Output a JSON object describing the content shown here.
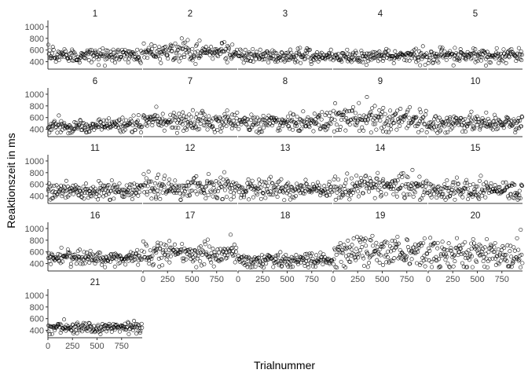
{
  "chart_data": {
    "type": "scatter",
    "layout": "facet-grid",
    "xlabel": "Trialnummer",
    "ylabel": "Reaktionszeit in ms",
    "xlim": [
      0,
      960
    ],
    "ylim": [
      300,
      1080
    ],
    "x_ticks": [
      0,
      250,
      500,
      750
    ],
    "y_ticks": [
      400,
      600,
      800,
      1000
    ],
    "grid": false,
    "legend": "none",
    "point_style": {
      "shape": "open-circle",
      "color": "#000000"
    },
    "trials_per_panel": 960,
    "panels": [
      {
        "label": "1",
        "segments": [
          {
            "x": [
              0,
              960
            ],
            "mean": 510,
            "sd": 65
          }
        ]
      },
      {
        "label": "2",
        "segments": [
          {
            "x": [
              0,
              960
            ],
            "mean": 575,
            "sd": 80
          }
        ]
      },
      {
        "label": "3",
        "segments": [
          {
            "x": [
              0,
              960
            ],
            "mean": 500,
            "sd": 60
          }
        ]
      },
      {
        "label": "4",
        "segments": [
          {
            "x": [
              0,
              960
            ],
            "mean": 490,
            "sd": 60
          }
        ]
      },
      {
        "label": "5",
        "segments": [
          {
            "x": [
              0,
              960
            ],
            "mean": 500,
            "sd": 60
          }
        ]
      },
      {
        "label": "6",
        "segments": [
          {
            "x": [
              0,
              500
            ],
            "mean": 450,
            "sd": 60
          },
          {
            "x": [
              500,
              960
            ],
            "mean": 480,
            "sd": 70
          }
        ]
      },
      {
        "label": "7",
        "segments": [
          {
            "x": [
              0,
              960
            ],
            "mean": 540,
            "sd": 90
          }
        ]
      },
      {
        "label": "8",
        "segments": [
          {
            "x": [
              0,
              960
            ],
            "mean": 520,
            "sd": 80
          }
        ]
      },
      {
        "label": "9",
        "segments": [
          {
            "x": [
              0,
              960
            ],
            "mean": 560,
            "sd": 120
          }
        ]
      },
      {
        "label": "10",
        "segments": [
          {
            "x": [
              0,
              960
            ],
            "mean": 500,
            "sd": 70
          }
        ]
      },
      {
        "label": "11",
        "segments": [
          {
            "x": [
              0,
              960
            ],
            "mean": 490,
            "sd": 70
          }
        ]
      },
      {
        "label": "12",
        "segments": [
          {
            "x": [
              0,
              960
            ],
            "mean": 530,
            "sd": 100
          }
        ]
      },
      {
        "label": "13",
        "segments": [
          {
            "x": [
              0,
              960
            ],
            "mean": 510,
            "sd": 85
          }
        ]
      },
      {
        "label": "14",
        "segments": [
          {
            "x": [
              0,
              250
            ],
            "mean": 520,
            "sd": 100
          },
          {
            "x": [
              250,
              480
            ],
            "mean": 600,
            "sd": 110
          },
          {
            "x": [
              480,
              960
            ],
            "mean": 560,
            "sd": 110
          }
        ]
      },
      {
        "label": "15",
        "segments": [
          {
            "x": [
              0,
              960
            ],
            "mean": 500,
            "sd": 80
          }
        ]
      },
      {
        "label": "16",
        "segments": [
          {
            "x": [
              0,
              960
            ],
            "mean": 500,
            "sd": 60
          }
        ]
      },
      {
        "label": "17",
        "segments": [
          {
            "x": [
              0,
              960
            ],
            "mean": 570,
            "sd": 100
          }
        ]
      },
      {
        "label": "18",
        "segments": [
          {
            "x": [
              0,
              960
            ],
            "mean": 460,
            "sd": 55
          }
        ]
      },
      {
        "label": "19",
        "segments": [
          {
            "x": [
              0,
              960
            ],
            "mean": 580,
            "sd": 130
          }
        ]
      },
      {
        "label": "20",
        "segments": [
          {
            "x": [
              0,
              960
            ],
            "mean": 560,
            "sd": 140
          }
        ]
      },
      {
        "label": "21",
        "segments": [
          {
            "x": [
              0,
              960
            ],
            "mean": 440,
            "sd": 50
          }
        ]
      }
    ]
  }
}
